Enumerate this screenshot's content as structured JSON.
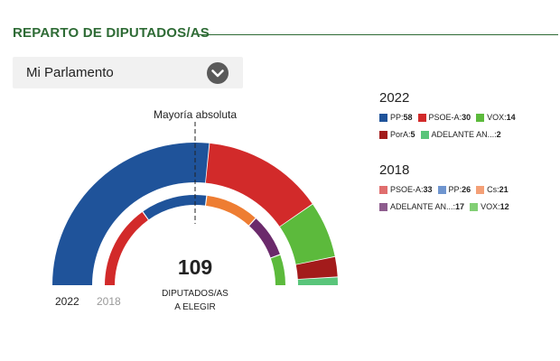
{
  "header": {
    "title": "REPARTO DE DIPUTADOS/AS"
  },
  "selector": {
    "selected": "Mi Parlamento"
  },
  "chart_data": {
    "type": "parliament_semicircle",
    "majority_label": "Mayoría absoluta",
    "total_seats": 109,
    "total_label_line1": "DIPUTADOS/AS",
    "total_label_line2": "A ELEGIR",
    "series": [
      {
        "name": "2022",
        "parties": [
          {
            "name": "PP",
            "seats": 58,
            "color": "#1f539a"
          },
          {
            "name": "PSOE-A",
            "seats": 30,
            "color": "#d22a2a"
          },
          {
            "name": "VOX",
            "seats": 14,
            "color": "#5cba3c"
          },
          {
            "name": "PorA",
            "seats": 5,
            "color": "#a31b1b"
          },
          {
            "name": "ADELANTE AN...",
            "seats": 2,
            "color": "#59c57a"
          }
        ]
      },
      {
        "name": "2018",
        "parties": [
          {
            "name": "PSOE-A",
            "seats": 33,
            "color": "#d22a2a"
          },
          {
            "name": "PP",
            "seats": 26,
            "color": "#1f539a"
          },
          {
            "name": "Cs",
            "seats": 21,
            "color": "#ee7d32"
          },
          {
            "name": "ADELANTE AN...",
            "seats": 17,
            "color": "#6b2a6b"
          },
          {
            "name": "VOX",
            "seats": 12,
            "color": "#5cba3c"
          }
        ]
      }
    ],
    "legend": [
      {
        "year": "2022",
        "items": [
          {
            "name": "PP",
            "seats": 58,
            "color": "#1f539a"
          },
          {
            "name": "PSOE-A",
            "seats": 30,
            "color": "#d22a2a"
          },
          {
            "name": "VOX",
            "seats": 14,
            "color": "#5cba3c"
          },
          {
            "name": "PorA",
            "seats": 5,
            "color": "#a31b1b"
          },
          {
            "name": "ADELANTE AN...",
            "seats": 2,
            "color": "#59c57a"
          }
        ]
      },
      {
        "year": "2018",
        "items": [
          {
            "name": "PSOE-A",
            "seats": 33,
            "color": "#e06e6e"
          },
          {
            "name": "PP",
            "seats": 26,
            "color": "#6f95cf"
          },
          {
            "name": "Cs",
            "seats": 21,
            "color": "#f4a077"
          },
          {
            "name": "ADELANTE AN...",
            "seats": 17,
            "color": "#8e5d8e"
          },
          {
            "name": "VOX",
            "seats": 12,
            "color": "#82cf75"
          }
        ]
      }
    ]
  }
}
